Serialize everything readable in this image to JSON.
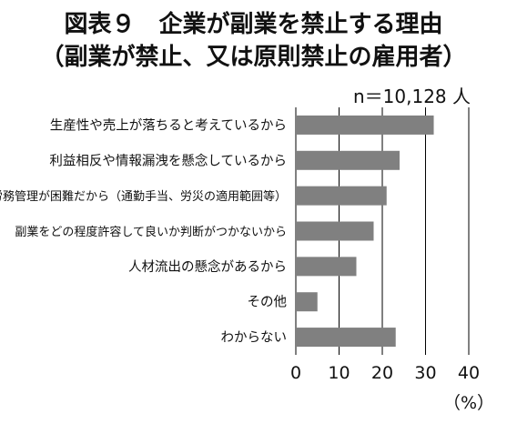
{
  "header": {
    "title_line1": "図表９　企業が副業を禁止する理由",
    "title_line2": "（副業が禁止、又は原則禁止の雇用者）",
    "sample_size": "n＝10,128 人"
  },
  "chart_data": {
    "type": "bar",
    "orientation": "horizontal",
    "categories": [
      "生産性や売上が落ちると考えているから",
      "利益相反や情報漏洩を懸念しているから",
      "労務管理が困難だから（通勤手当、労災の適用範囲等）",
      "副業をどの程度許容して良いか判断がつかないから",
      "人材流出の懸念があるから",
      "その他",
      "わからない"
    ],
    "values": [
      31.9,
      24.0,
      21.0,
      18.0,
      14.0,
      5.0,
      23.1
    ],
    "xlim": [
      0,
      40
    ],
    "xticks": [
      0,
      10,
      20,
      30,
      40
    ],
    "xunit": "（%）",
    "grid": "vertical",
    "bar_color": "#808080"
  }
}
